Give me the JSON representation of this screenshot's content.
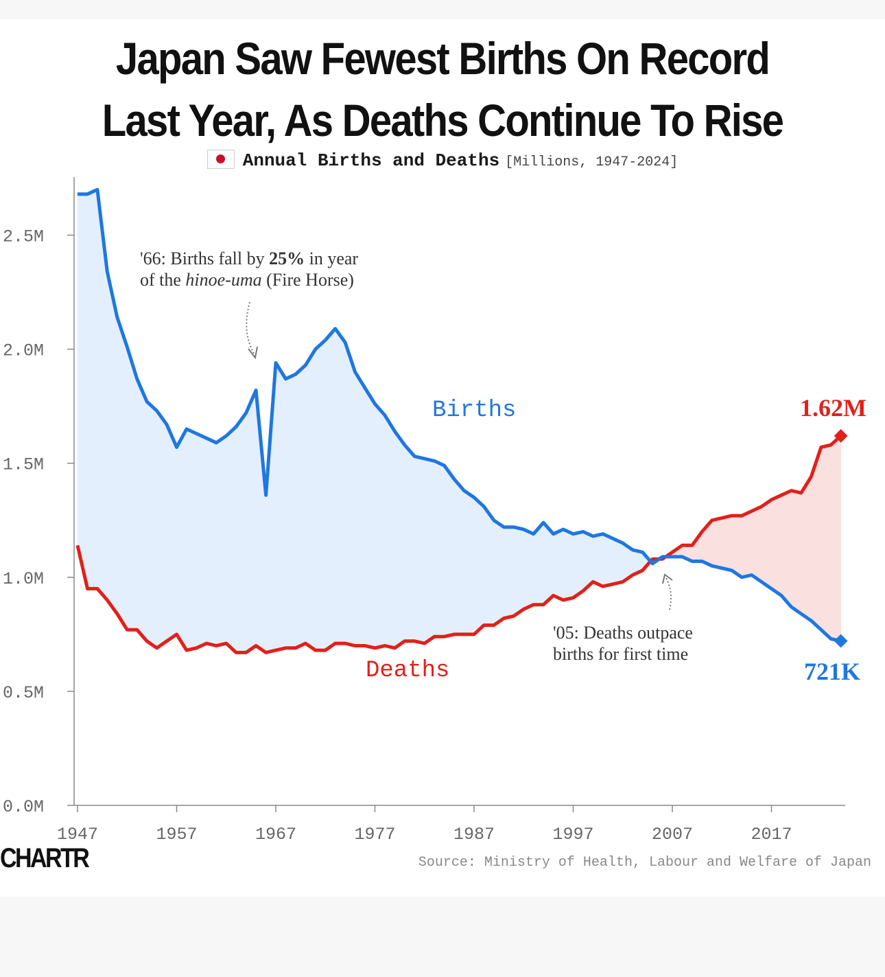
{
  "title_line1": "Japan Saw Fewest Births On Record",
  "title_line2": "Last Year, As Deaths Continue To Rise",
  "subtitle_main": "Annual Births and Deaths",
  "subtitle_unit": "[Millions, 1947-2024]",
  "logo_text": "CHARTR",
  "source": "Source: Ministry of Health, Labour and Welfare of Japan",
  "colors": {
    "births": "#1f77e0",
    "deaths": "#e0211b",
    "births_fill": "#e3effc",
    "deaths_fill": "#fbe0e0"
  },
  "annotations": {
    "fire_horse_line1_a": "'66: Births fall by ",
    "fire_horse_line1_b": "25%",
    "fire_horse_line1_c": " in year",
    "fire_horse_line2_a": "of the ",
    "fire_horse_line2_b": "hinoe-uma",
    "fire_horse_line2_c": " (Fire Horse)",
    "crossover_line1": "'05: Deaths outpace",
    "crossover_line2": "births for first time"
  },
  "end_labels": {
    "deaths": "1.62M",
    "births": "721K"
  },
  "chart_data": {
    "type": "area",
    "title": "Japan Saw Fewest Births On Record Last Year, As Deaths Continue To Rise",
    "subtitle": "Annual Births and Deaths [Millions, 1947-2024]",
    "xlabel": "",
    "ylabel": "",
    "xlim": [
      1947,
      2024
    ],
    "ylim": [
      0,
      2.75
    ],
    "x_ticks": [
      1947,
      1957,
      1967,
      1977,
      1987,
      1997,
      2007,
      2017
    ],
    "y_ticks": [
      0,
      0.5,
      1.0,
      1.5,
      2.0,
      2.5
    ],
    "y_tick_labels": [
      "0.0M",
      "0.5M",
      "1.0M",
      "1.5M",
      "2.0M",
      "2.5M"
    ],
    "grid": false,
    "x": [
      1947,
      1948,
      1949,
      1950,
      1951,
      1952,
      1953,
      1954,
      1955,
      1956,
      1957,
      1958,
      1959,
      1960,
      1961,
      1962,
      1963,
      1964,
      1965,
      1966,
      1967,
      1968,
      1969,
      1970,
      1971,
      1972,
      1973,
      1974,
      1975,
      1976,
      1977,
      1978,
      1979,
      1980,
      1981,
      1982,
      1983,
      1984,
      1985,
      1986,
      1987,
      1988,
      1989,
      1990,
      1991,
      1992,
      1993,
      1994,
      1995,
      1996,
      1997,
      1998,
      1999,
      2000,
      2001,
      2002,
      2003,
      2004,
      2005,
      2006,
      2007,
      2008,
      2009,
      2010,
      2011,
      2012,
      2013,
      2014,
      2015,
      2016,
      2017,
      2018,
      2019,
      2020,
      2021,
      2022,
      2023,
      2024
    ],
    "series": [
      {
        "name": "Births",
        "values": [
          2.68,
          2.68,
          2.7,
          2.34,
          2.14,
          2.01,
          1.87,
          1.77,
          1.73,
          1.67,
          1.57,
          1.65,
          1.63,
          1.61,
          1.59,
          1.62,
          1.66,
          1.72,
          1.82,
          1.36,
          1.94,
          1.87,
          1.89,
          1.93,
          2.0,
          2.04,
          2.09,
          2.03,
          1.9,
          1.83,
          1.76,
          1.71,
          1.64,
          1.58,
          1.53,
          1.52,
          1.51,
          1.49,
          1.43,
          1.38,
          1.35,
          1.31,
          1.25,
          1.22,
          1.22,
          1.21,
          1.19,
          1.24,
          1.19,
          1.21,
          1.19,
          1.2,
          1.18,
          1.19,
          1.17,
          1.15,
          1.12,
          1.11,
          1.06,
          1.09,
          1.09,
          1.09,
          1.07,
          1.07,
          1.05,
          1.04,
          1.03,
          1.0,
          1.01,
          0.98,
          0.95,
          0.92,
          0.87,
          0.84,
          0.81,
          0.77,
          0.73,
          0.721
        ]
      },
      {
        "name": "Deaths",
        "values": [
          1.14,
          0.95,
          0.95,
          0.9,
          0.84,
          0.77,
          0.77,
          0.72,
          0.69,
          0.72,
          0.75,
          0.68,
          0.69,
          0.71,
          0.7,
          0.71,
          0.67,
          0.67,
          0.7,
          0.67,
          0.68,
          0.69,
          0.69,
          0.71,
          0.68,
          0.68,
          0.71,
          0.71,
          0.7,
          0.7,
          0.69,
          0.7,
          0.69,
          0.72,
          0.72,
          0.71,
          0.74,
          0.74,
          0.75,
          0.75,
          0.75,
          0.79,
          0.79,
          0.82,
          0.83,
          0.86,
          0.88,
          0.88,
          0.92,
          0.9,
          0.91,
          0.94,
          0.98,
          0.96,
          0.97,
          0.98,
          1.01,
          1.03,
          1.08,
          1.08,
          1.11,
          1.14,
          1.14,
          1.2,
          1.25,
          1.26,
          1.27,
          1.27,
          1.29,
          1.31,
          1.34,
          1.36,
          1.38,
          1.37,
          1.44,
          1.57,
          1.58,
          1.62
        ]
      }
    ]
  }
}
